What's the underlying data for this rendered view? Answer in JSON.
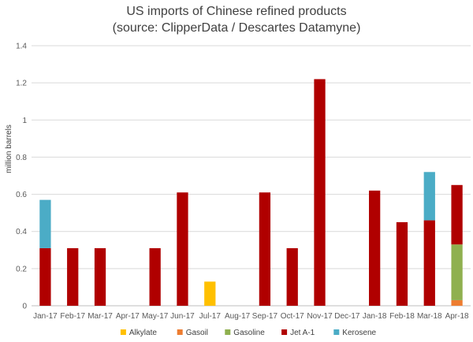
{
  "chart_data": {
    "type": "bar",
    "stacked": true,
    "title": [
      "US imports of Chinese refined products",
      "(source: ClipperData / Descartes Datamyne)"
    ],
    "xlabel": "",
    "ylabel": "million barrels",
    "ylim": [
      0,
      1.4
    ],
    "yticks": [
      0,
      0.2,
      0.4,
      0.6,
      0.8,
      1,
      1.2,
      1.4
    ],
    "ytick_labels": [
      "0",
      "0.2",
      "0.4",
      "0.6",
      "0.8",
      "1",
      "1.2",
      "1.4"
    ],
    "grid": true,
    "legend_position": "bottom",
    "categories": [
      "Jan-17",
      "Feb-17",
      "Mar-17",
      "Apr-17",
      "May-17",
      "Jun-17",
      "Jul-17",
      "Aug-17",
      "Sep-17",
      "Oct-17",
      "Nov-17",
      "Dec-17",
      "Jan-18",
      "Feb-18",
      "Mar-18",
      "Apr-18"
    ],
    "series": [
      {
        "name": "Alkylate",
        "color": "#FFC000",
        "values": [
          0,
          0,
          0,
          0,
          0,
          0,
          0.13,
          0,
          0,
          0,
          0,
          0,
          0,
          0,
          0,
          0
        ]
      },
      {
        "name": "Gasoil",
        "color": "#ED7D31",
        "values": [
          0,
          0,
          0,
          0,
          0,
          0,
          0,
          0,
          0,
          0,
          0,
          0,
          0,
          0,
          0,
          0.03
        ]
      },
      {
        "name": "Gasoline",
        "color": "#8FB04F",
        "values": [
          0,
          0,
          0,
          0,
          0,
          0,
          0,
          0,
          0,
          0,
          0,
          0,
          0,
          0,
          0,
          0.3
        ]
      },
      {
        "name": "Jet A-1",
        "color": "#B00000",
        "values": [
          0.31,
          0.31,
          0.31,
          0,
          0.31,
          0.61,
          0,
          0,
          0.61,
          0.31,
          1.22,
          0,
          0.62,
          0.45,
          0.46,
          0.32
        ]
      },
      {
        "name": "Kerosene",
        "color": "#4BACC6",
        "values": [
          0.26,
          0,
          0,
          0,
          0,
          0,
          0,
          0,
          0,
          0,
          0,
          0,
          0,
          0,
          0.26,
          0
        ]
      }
    ]
  }
}
